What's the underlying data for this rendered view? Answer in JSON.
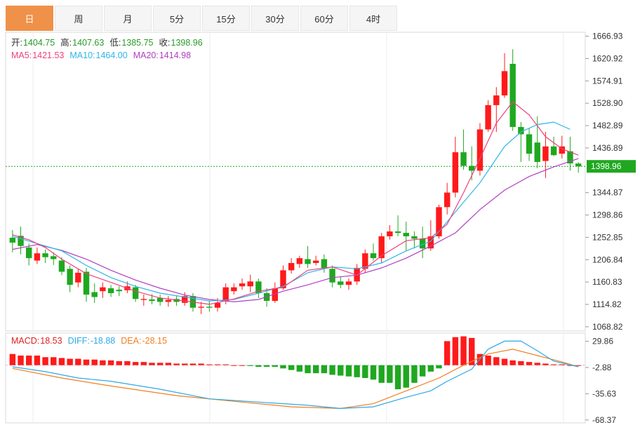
{
  "tabs": [
    {
      "label": "日",
      "active": true
    },
    {
      "label": "周",
      "active": false
    },
    {
      "label": "月",
      "active": false
    },
    {
      "label": "5分",
      "active": false
    },
    {
      "label": "15分",
      "active": false
    },
    {
      "label": "30分",
      "active": false
    },
    {
      "label": "60分",
      "active": false
    },
    {
      "label": "4时",
      "active": false
    }
  ],
  "ohlc_info": {
    "open_label": "开:",
    "open": "1404.75",
    "high_label": "高:",
    "high": "1407.63",
    "low_label": "低:",
    "low": "1385.75",
    "close_label": "收:",
    "close": "1398.96"
  },
  "ma_info": {
    "ma5_label": "MA5:",
    "ma5": "1421.53",
    "ma10_label": "MA10:",
    "ma10": "1464.00",
    "ma20_label": "MA20:",
    "ma20": "1414.98"
  },
  "macd_info": {
    "macd_label": "MACD:",
    "macd": "18.53",
    "diff_label": "DIFF:",
    "diff": "-18.88",
    "dea_label": "DEA:",
    "dea": "-28.15"
  },
  "colors": {
    "up": "#ff1a1a",
    "down": "#1fa81f",
    "ma5": "#f0407a",
    "ma10": "#2fb5e8",
    "ma20": "#b040c0",
    "diff": "#2fa8e8",
    "dea": "#f08020",
    "price_tag": "#1fa81f",
    "label_text": "#2a9a2a"
  },
  "chart_data": {
    "type": "candlestick",
    "price_axis": {
      "ticks": [
        "1666.93",
        "1620.92",
        "1574.91",
        "1528.90",
        "1482.89",
        "1436.89",
        "1344.87",
        "1298.86",
        "1252.85",
        "1206.84",
        "1160.83",
        "1114.82",
        "1068.82"
      ],
      "ylim": [
        1060,
        1675
      ]
    },
    "last_price": "1398.96",
    "macd_axis": {
      "ticks": [
        "29.86",
        "-2.88",
        "-35.63",
        "-68.37"
      ],
      "ylim": [
        -72,
        40
      ]
    },
    "candles": [
      [
        1252,
        1242,
        1268,
        1222
      ],
      [
        1256,
        1235,
        1275,
        1218
      ],
      [
        1232,
        1210,
        1240,
        1195
      ],
      [
        1205,
        1220,
        1232,
        1198
      ],
      [
        1220,
        1212,
        1228,
        1200
      ],
      [
        1214,
        1208,
        1222,
        1196
      ],
      [
        1205,
        1182,
        1212,
        1175
      ],
      [
        1188,
        1155,
        1195,
        1140
      ],
      [
        1160,
        1180,
        1188,
        1150
      ],
      [
        1182,
        1135,
        1190,
        1120
      ],
      [
        1140,
        1130,
        1158,
        1118
      ],
      [
        1142,
        1150,
        1160,
        1128
      ],
      [
        1148,
        1138,
        1155,
        1130
      ],
      [
        1145,
        1142,
        1152,
        1132
      ],
      [
        1144,
        1152,
        1162,
        1138
      ],
      [
        1150,
        1126,
        1155,
        1120
      ],
      [
        1124,
        1126,
        1135,
        1112
      ],
      [
        1125,
        1122,
        1136,
        1115
      ],
      [
        1128,
        1120,
        1135,
        1112
      ],
      [
        1120,
        1124,
        1132,
        1110
      ],
      [
        1126,
        1120,
        1132,
        1112
      ],
      [
        1118,
        1132,
        1140,
        1112
      ],
      [
        1132,
        1108,
        1138,
        1100
      ],
      [
        1108,
        1110,
        1120,
        1095
      ],
      [
        1110,
        1108,
        1122,
        1100
      ],
      [
        1108,
        1118,
        1128,
        1100
      ],
      [
        1122,
        1150,
        1158,
        1115
      ],
      [
        1142,
        1150,
        1158,
        1135
      ],
      [
        1152,
        1158,
        1168,
        1145
      ],
      [
        1152,
        1162,
        1176,
        1140
      ],
      [
        1162,
        1138,
        1168,
        1128
      ],
      [
        1138,
        1122,
        1148,
        1110
      ],
      [
        1122,
        1148,
        1160,
        1118
      ],
      [
        1148,
        1185,
        1195,
        1145
      ],
      [
        1185,
        1200,
        1210,
        1178
      ],
      [
        1198,
        1210,
        1215,
        1190
      ],
      [
        1208,
        1198,
        1235,
        1190
      ],
      [
        1200,
        1205,
        1215,
        1195
      ],
      [
        1208,
        1190,
        1218,
        1180
      ],
      [
        1188,
        1160,
        1195,
        1150
      ],
      [
        1162,
        1155,
        1172,
        1148
      ],
      [
        1155,
        1162,
        1168,
        1145
      ],
      [
        1162,
        1190,
        1198,
        1155
      ],
      [
        1188,
        1220,
        1228,
        1180
      ],
      [
        1220,
        1210,
        1240,
        1205
      ],
      [
        1210,
        1255,
        1262,
        1200
      ],
      [
        1255,
        1265,
        1278,
        1248
      ],
      [
        1265,
        1262,
        1298,
        1255
      ],
      [
        1262,
        1255,
        1285,
        1225
      ],
      [
        1255,
        1250,
        1265,
        1230
      ],
      [
        1250,
        1230,
        1275,
        1210
      ],
      [
        1230,
        1255,
        1288,
        1225
      ],
      [
        1255,
        1315,
        1320,
        1250
      ],
      [
        1315,
        1345,
        1365,
        1300
      ],
      [
        1345,
        1428,
        1460,
        1335
      ],
      [
        1428,
        1400,
        1475,
        1392
      ],
      [
        1400,
        1390,
        1440,
        1370
      ],
      [
        1390,
        1475,
        1488,
        1380
      ],
      [
        1475,
        1525,
        1535,
        1470
      ],
      [
        1525,
        1545,
        1562,
        1470
      ],
      [
        1545,
        1595,
        1632,
        1540
      ],
      [
        1610,
        1480,
        1640,
        1472
      ],
      [
        1480,
        1465,
        1490,
        1408
      ],
      [
        1465,
        1425,
        1478,
        1410
      ],
      [
        1448,
        1408,
        1502,
        1395
      ],
      [
        1410,
        1440,
        1470,
        1375
      ],
      [
        1440,
        1422,
        1460,
        1420
      ],
      [
        1425,
        1440,
        1462,
        1415
      ],
      [
        1430,
        1405,
        1460,
        1390
      ],
      [
        1404.75,
        1398.96,
        1407.63,
        1385.75
      ]
    ],
    "ma5": [
      [
        0,
        1258
      ],
      [
        2,
        1248
      ],
      [
        4,
        1232
      ],
      [
        6,
        1208
      ],
      [
        9,
        1178
      ],
      [
        12,
        1160
      ],
      [
        15,
        1142
      ],
      [
        18,
        1128
      ],
      [
        21,
        1122
      ],
      [
        24,
        1115
      ],
      [
        27,
        1126
      ],
      [
        30,
        1142
      ],
      [
        33,
        1150
      ],
      [
        36,
        1185
      ],
      [
        39,
        1192
      ],
      [
        42,
        1175
      ],
      [
        45,
        1215
      ],
      [
        48,
        1246
      ],
      [
        51,
        1252
      ],
      [
        53,
        1280
      ],
      [
        55,
        1345
      ],
      [
        57,
        1415
      ],
      [
        59,
        1488
      ],
      [
        61,
        1532
      ],
      [
        63,
        1505
      ],
      [
        65,
        1460
      ],
      [
        67,
        1435
      ],
      [
        69,
        1422
      ]
    ],
    "ma10": [
      [
        0,
        1255
      ],
      [
        3,
        1240
      ],
      [
        6,
        1225
      ],
      [
        9,
        1195
      ],
      [
        12,
        1170
      ],
      [
        15,
        1152
      ],
      [
        18,
        1138
      ],
      [
        21,
        1130
      ],
      [
        24,
        1122
      ],
      [
        27,
        1125
      ],
      [
        30,
        1138
      ],
      [
        33,
        1152
      ],
      [
        36,
        1180
      ],
      [
        39,
        1192
      ],
      [
        42,
        1188
      ],
      [
        45,
        1200
      ],
      [
        48,
        1225
      ],
      [
        51,
        1245
      ],
      [
        54,
        1305
      ],
      [
        57,
        1365
      ],
      [
        60,
        1440
      ],
      [
        62,
        1470
      ],
      [
        64,
        1485
      ],
      [
        66,
        1490
      ],
      [
        68,
        1475
      ]
    ],
    "ma20": [
      [
        0,
        1228
      ],
      [
        3,
        1238
      ],
      [
        6,
        1226
      ],
      [
        9,
        1208
      ],
      [
        12,
        1185
      ],
      [
        15,
        1165
      ],
      [
        18,
        1148
      ],
      [
        21,
        1134
      ],
      [
        24,
        1125
      ],
      [
        27,
        1120
      ],
      [
        30,
        1125
      ],
      [
        33,
        1142
      ],
      [
        36,
        1155
      ],
      [
        39,
        1170
      ],
      [
        42,
        1175
      ],
      [
        45,
        1190
      ],
      [
        48,
        1210
      ],
      [
        51,
        1235
      ],
      [
        54,
        1262
      ],
      [
        57,
        1310
      ],
      [
        60,
        1350
      ],
      [
        63,
        1378
      ],
      [
        66,
        1398
      ],
      [
        69,
        1415
      ]
    ],
    "macd_bars": [
      14,
      12,
      12,
      12,
      10,
      10,
      9,
      8,
      8,
      7,
      7,
      6,
      6,
      5,
      5,
      4,
      4,
      3,
      3,
      3,
      2,
      2,
      2,
      2,
      1,
      1,
      1,
      0,
      0,
      -1,
      -2,
      -2,
      -2,
      -4,
      -6,
      -8,
      -10,
      -10,
      -10,
      -12,
      -13,
      -14,
      -15,
      -16,
      -18,
      -22,
      -22,
      -30,
      -28,
      -22,
      -14,
      -8,
      -4,
      30,
      35,
      36,
      34,
      14,
      12,
      10,
      8,
      6,
      5,
      4,
      3,
      2,
      1,
      1,
      0,
      0
    ],
    "macd_bars_note": "",
    "diff": [
      [
        0,
        -2
      ],
      [
        4,
        -8
      ],
      [
        8,
        -16
      ],
      [
        12,
        -20
      ],
      [
        18,
        -30
      ],
      [
        24,
        -42
      ],
      [
        30,
        -46
      ],
      [
        36,
        -50
      ],
      [
        40,
        -54
      ],
      [
        44,
        -52
      ],
      [
        48,
        -40
      ],
      [
        51,
        -32
      ],
      [
        53,
        -20
      ],
      [
        56,
        -5
      ],
      [
        58,
        20
      ],
      [
        60,
        30
      ],
      [
        62,
        30
      ],
      [
        64,
        18
      ],
      [
        66,
        5
      ],
      [
        69,
        -2
      ]
    ],
    "dea": [
      [
        0,
        -4
      ],
      [
        6,
        -16
      ],
      [
        12,
        -26
      ],
      [
        20,
        -38
      ],
      [
        28,
        -46
      ],
      [
        34,
        -52
      ],
      [
        40,
        -54
      ],
      [
        44,
        -48
      ],
      [
        48,
        -32
      ],
      [
        52,
        -16
      ],
      [
        55,
        0
      ],
      [
        58,
        14
      ],
      [
        61,
        20
      ],
      [
        64,
        12
      ],
      [
        67,
        4
      ],
      [
        69,
        -2
      ]
    ]
  }
}
